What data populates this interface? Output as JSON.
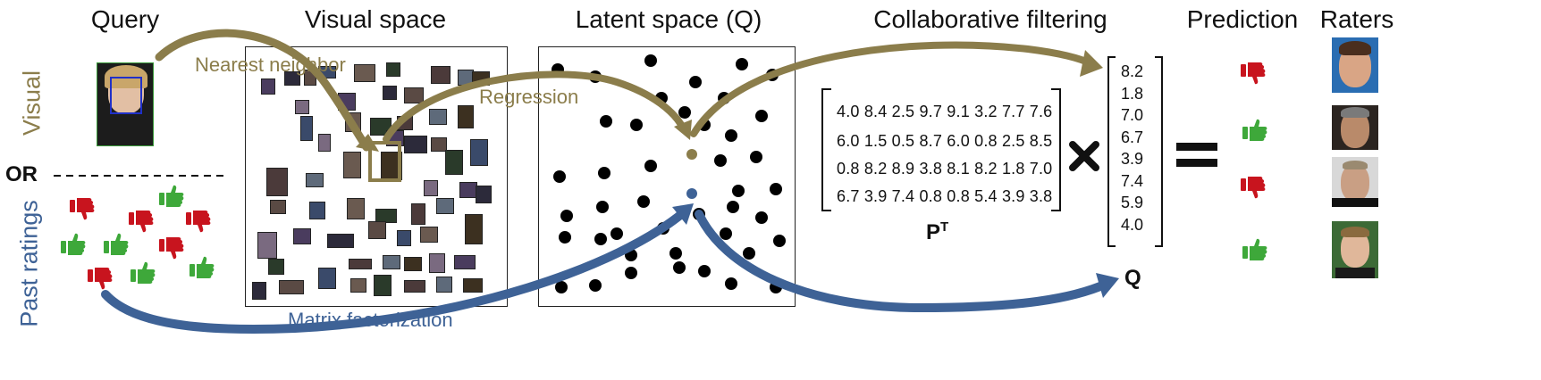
{
  "headers": {
    "query": "Query",
    "visual_space": "Visual space",
    "latent_space": "Latent space (Q)",
    "collab_filtering": "Collaborative filtering",
    "prediction": "Prediction",
    "raters": "Raters"
  },
  "left": {
    "visual_label": "Visual",
    "or_label": "OR",
    "past_ratings_label": "Past ratings"
  },
  "arrows": {
    "nearest_neighbor": "Nearest neighbor",
    "regression": "Regression",
    "matrix_factorization": "Matrix factorization"
  },
  "matrix_p": {
    "rows": [
      "4.0 8.4 2.5 9.7 9.1 3.2 7.7 7.6",
      "6.0 1.5 0.5 8.7 6.0 0.8 2.5 8.5",
      "0.8 8.2 8.9 3.8 8.1 8.2 1.8 7.0",
      "6.7 3.9 7.4 0.8 0.8 5.4 3.9 3.8"
    ],
    "label": "P",
    "label_sup": "T"
  },
  "vector_q": {
    "values": [
      "8.2",
      "1.8",
      "7.0",
      "6.7",
      "3.9",
      "7.4",
      "5.9",
      "4.0"
    ],
    "label": "Q"
  },
  "predictions": [
    "thumbs-down",
    "thumbs-up",
    "thumbs-down",
    "thumbs-up"
  ],
  "colors": {
    "olive": "#8B7D4B",
    "blue": "#3E6296",
    "red": "#C8141E",
    "green": "#3EA83A"
  }
}
